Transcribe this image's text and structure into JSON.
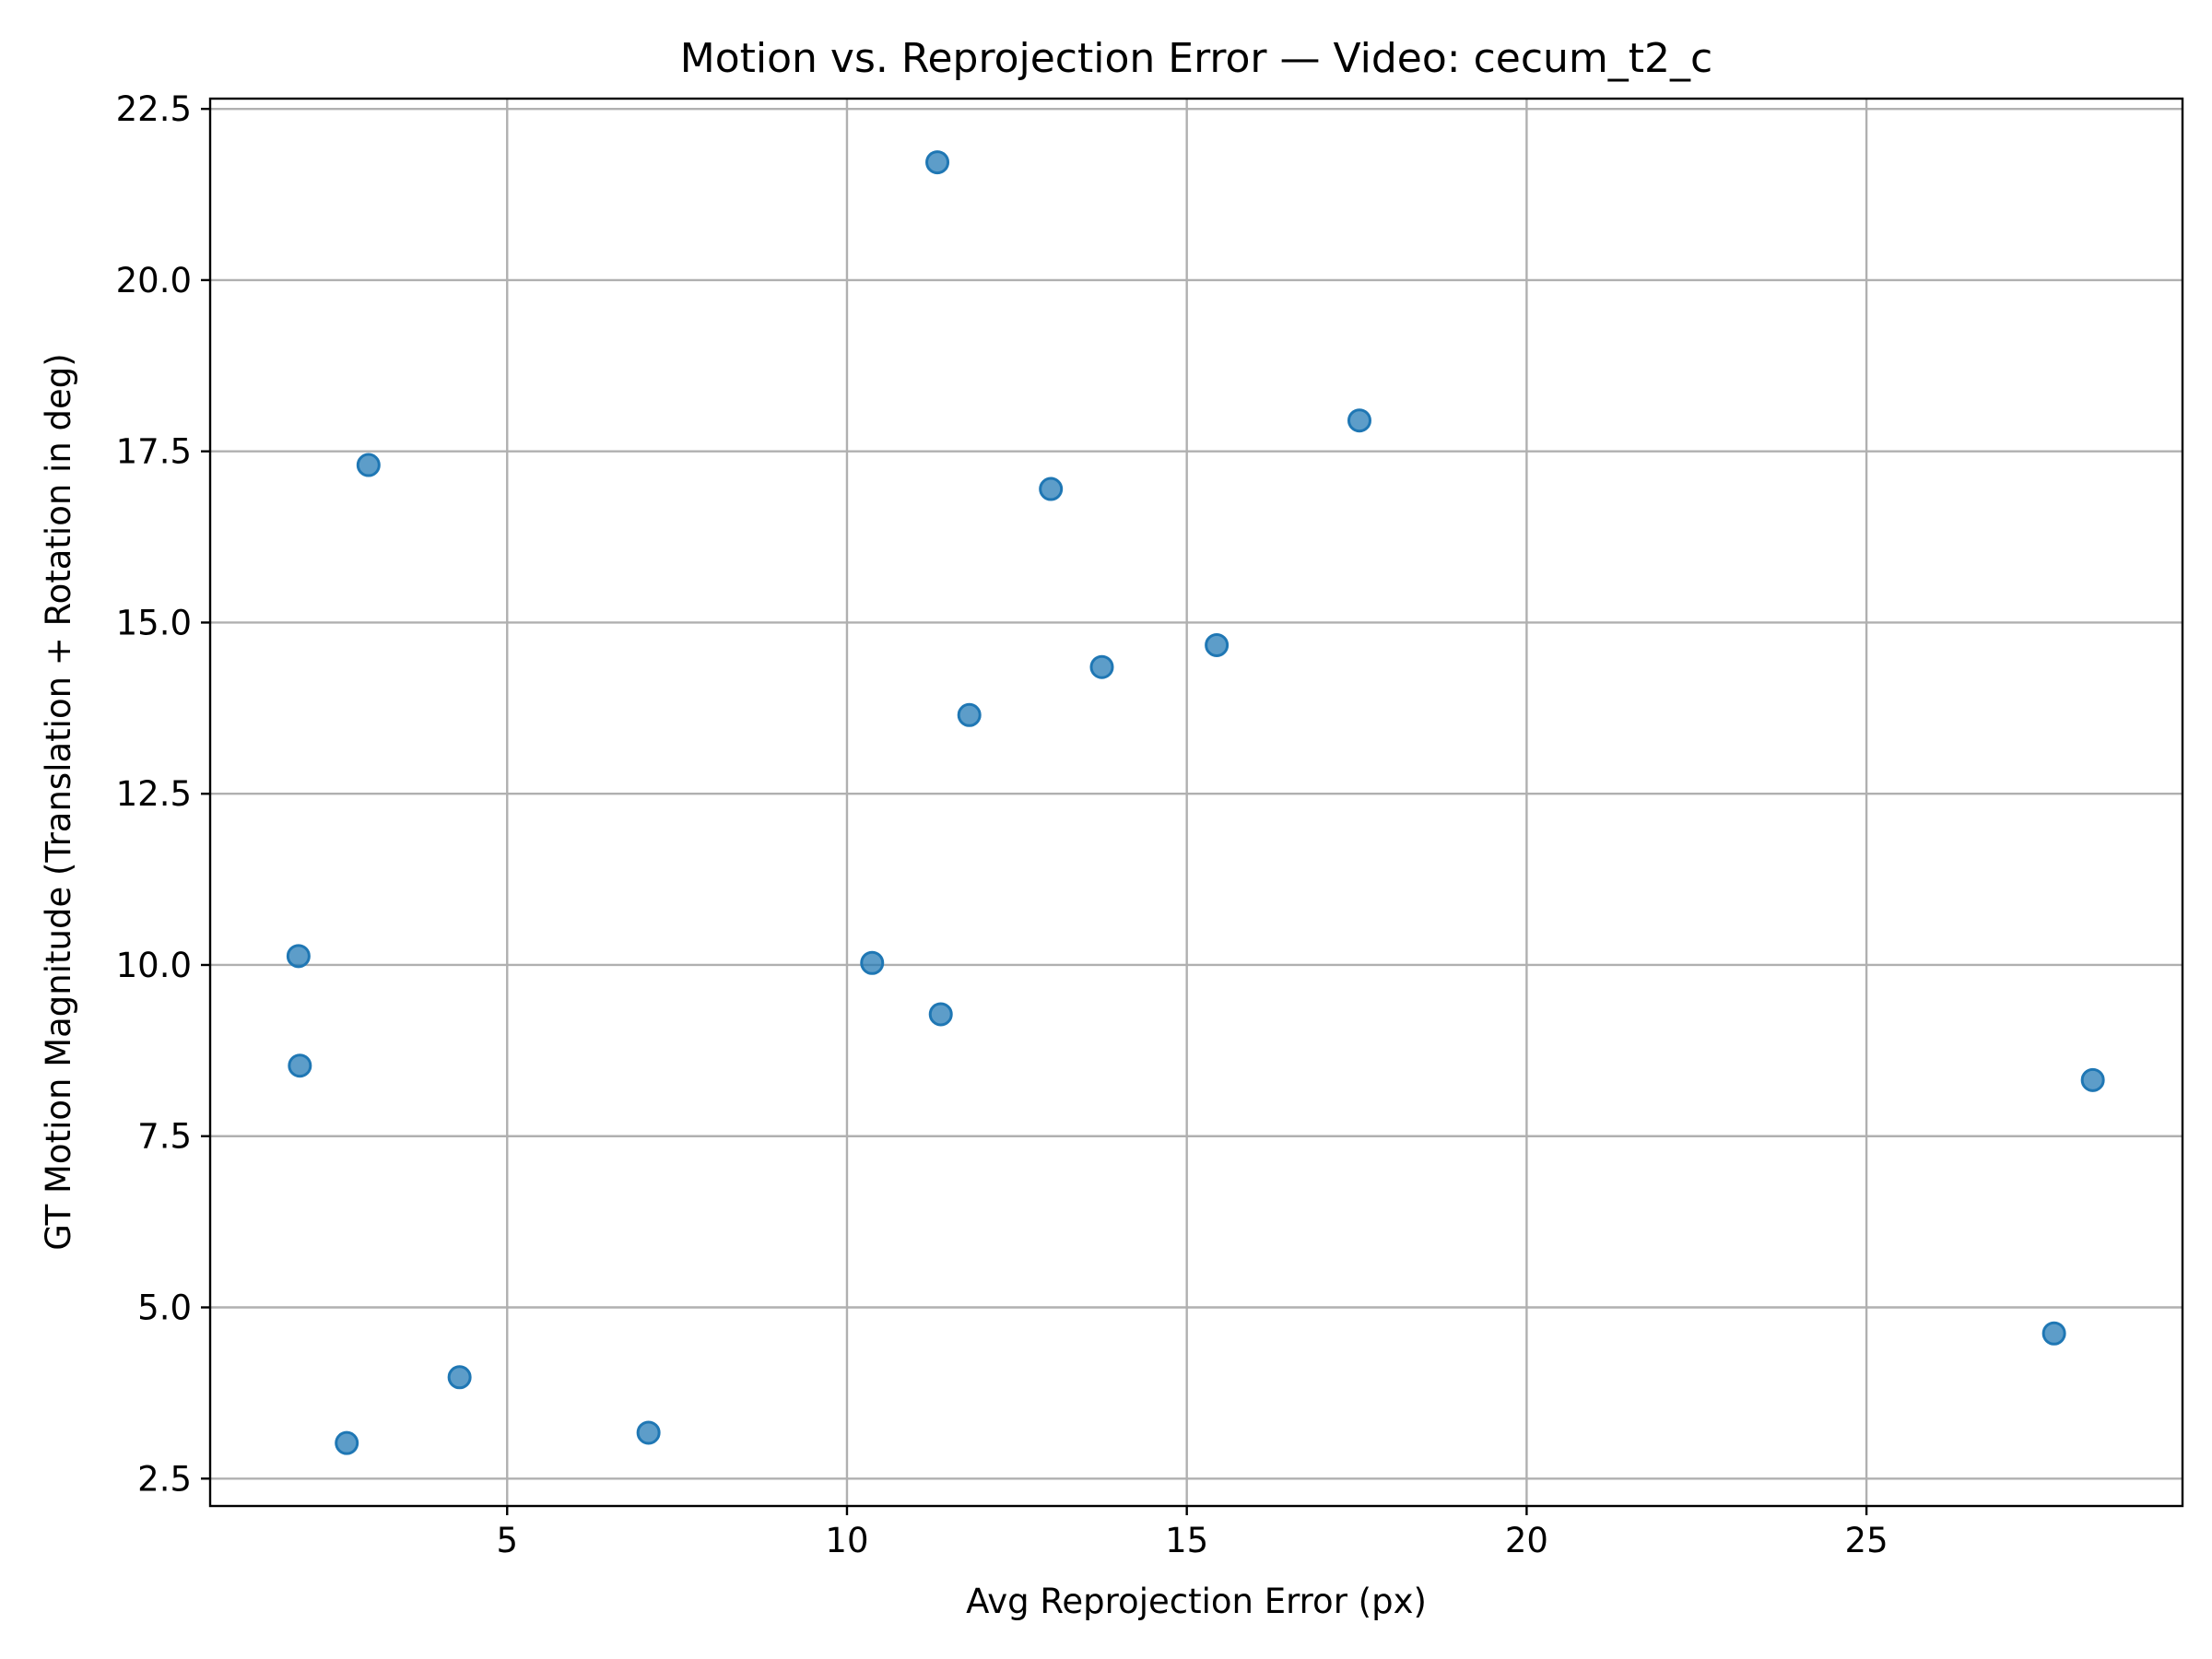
{
  "chart_data": {
    "type": "scatter",
    "title": "Motion vs. Reprojection Error — Video: cecum_t2_c",
    "xlabel": "Avg Reprojection Error (px)",
    "ylabel": "GT Motion Magnitude (Translation + Rotation in deg)",
    "xlim": [
      0.63,
      29.65
    ],
    "ylim": [
      2.1,
      22.65
    ],
    "xticks": [
      5,
      10,
      15,
      20,
      25
    ],
    "xtick_labels": [
      "5",
      "10",
      "15",
      "20",
      "25"
    ],
    "yticks": [
      2.5,
      5.0,
      7.5,
      10.0,
      12.5,
      15.0,
      17.5,
      20.0,
      22.5
    ],
    "ytick_labels": [
      "2.5",
      "5.0",
      "7.5",
      "10.0",
      "12.5",
      "15.0",
      "17.5",
      "20.0",
      "22.5"
    ],
    "grid": true,
    "legend": "none",
    "marker_color": "#1f77b4",
    "points": [
      {
        "x": 11.33,
        "y": 21.72
      },
      {
        "x": 17.54,
        "y": 17.95
      },
      {
        "x": 2.96,
        "y": 17.3
      },
      {
        "x": 13.0,
        "y": 16.95
      },
      {
        "x": 15.44,
        "y": 14.67
      },
      {
        "x": 13.75,
        "y": 14.35
      },
      {
        "x": 11.8,
        "y": 13.65
      },
      {
        "x": 1.93,
        "y": 10.13
      },
      {
        "x": 10.37,
        "y": 10.03
      },
      {
        "x": 11.38,
        "y": 9.28
      },
      {
        "x": 1.95,
        "y": 8.53
      },
      {
        "x": 28.33,
        "y": 8.32
      },
      {
        "x": 27.76,
        "y": 4.62
      },
      {
        "x": 4.3,
        "y": 3.98
      },
      {
        "x": 2.64,
        "y": 3.02
      },
      {
        "x": 7.08,
        "y": 3.17
      }
    ]
  }
}
